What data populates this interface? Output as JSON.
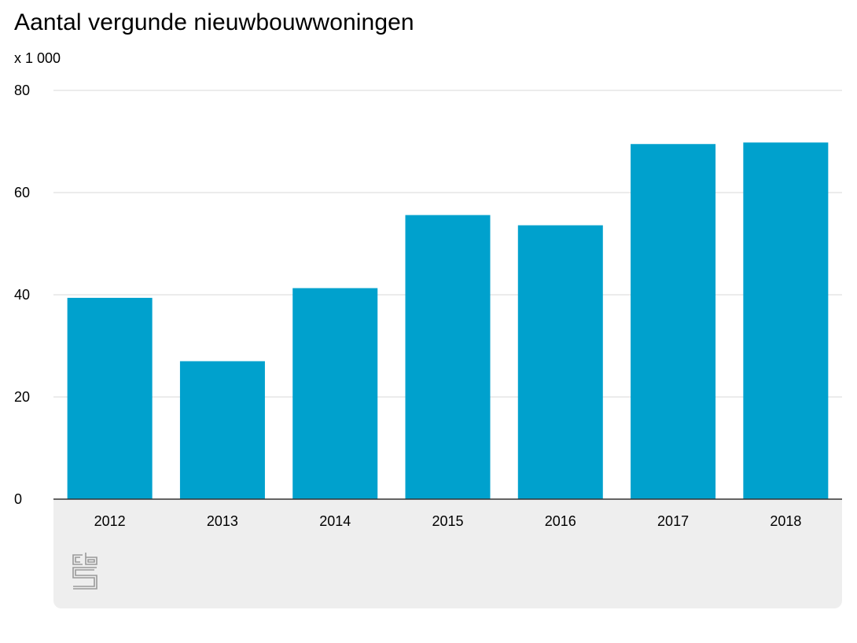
{
  "chart_data": {
    "type": "bar",
    "title": "Aantal vergunde nieuwbouwwoningen",
    "unit_label": "x 1 000",
    "categories": [
      "2012",
      "2013",
      "2014",
      "2015",
      "2016",
      "2017",
      "2018"
    ],
    "values": [
      39.4,
      27.0,
      41.3,
      55.6,
      53.6,
      69.5,
      69.8
    ],
    "ylim": [
      0,
      80
    ],
    "yticks": [
      0,
      20,
      40,
      60,
      80
    ],
    "ytick_labels": [
      "0",
      "20",
      "40",
      "60",
      "80"
    ],
    "grid": true,
    "bar_color": "#00a1cd"
  },
  "branding": {
    "logo_icon": "cbs-logo-icon"
  }
}
